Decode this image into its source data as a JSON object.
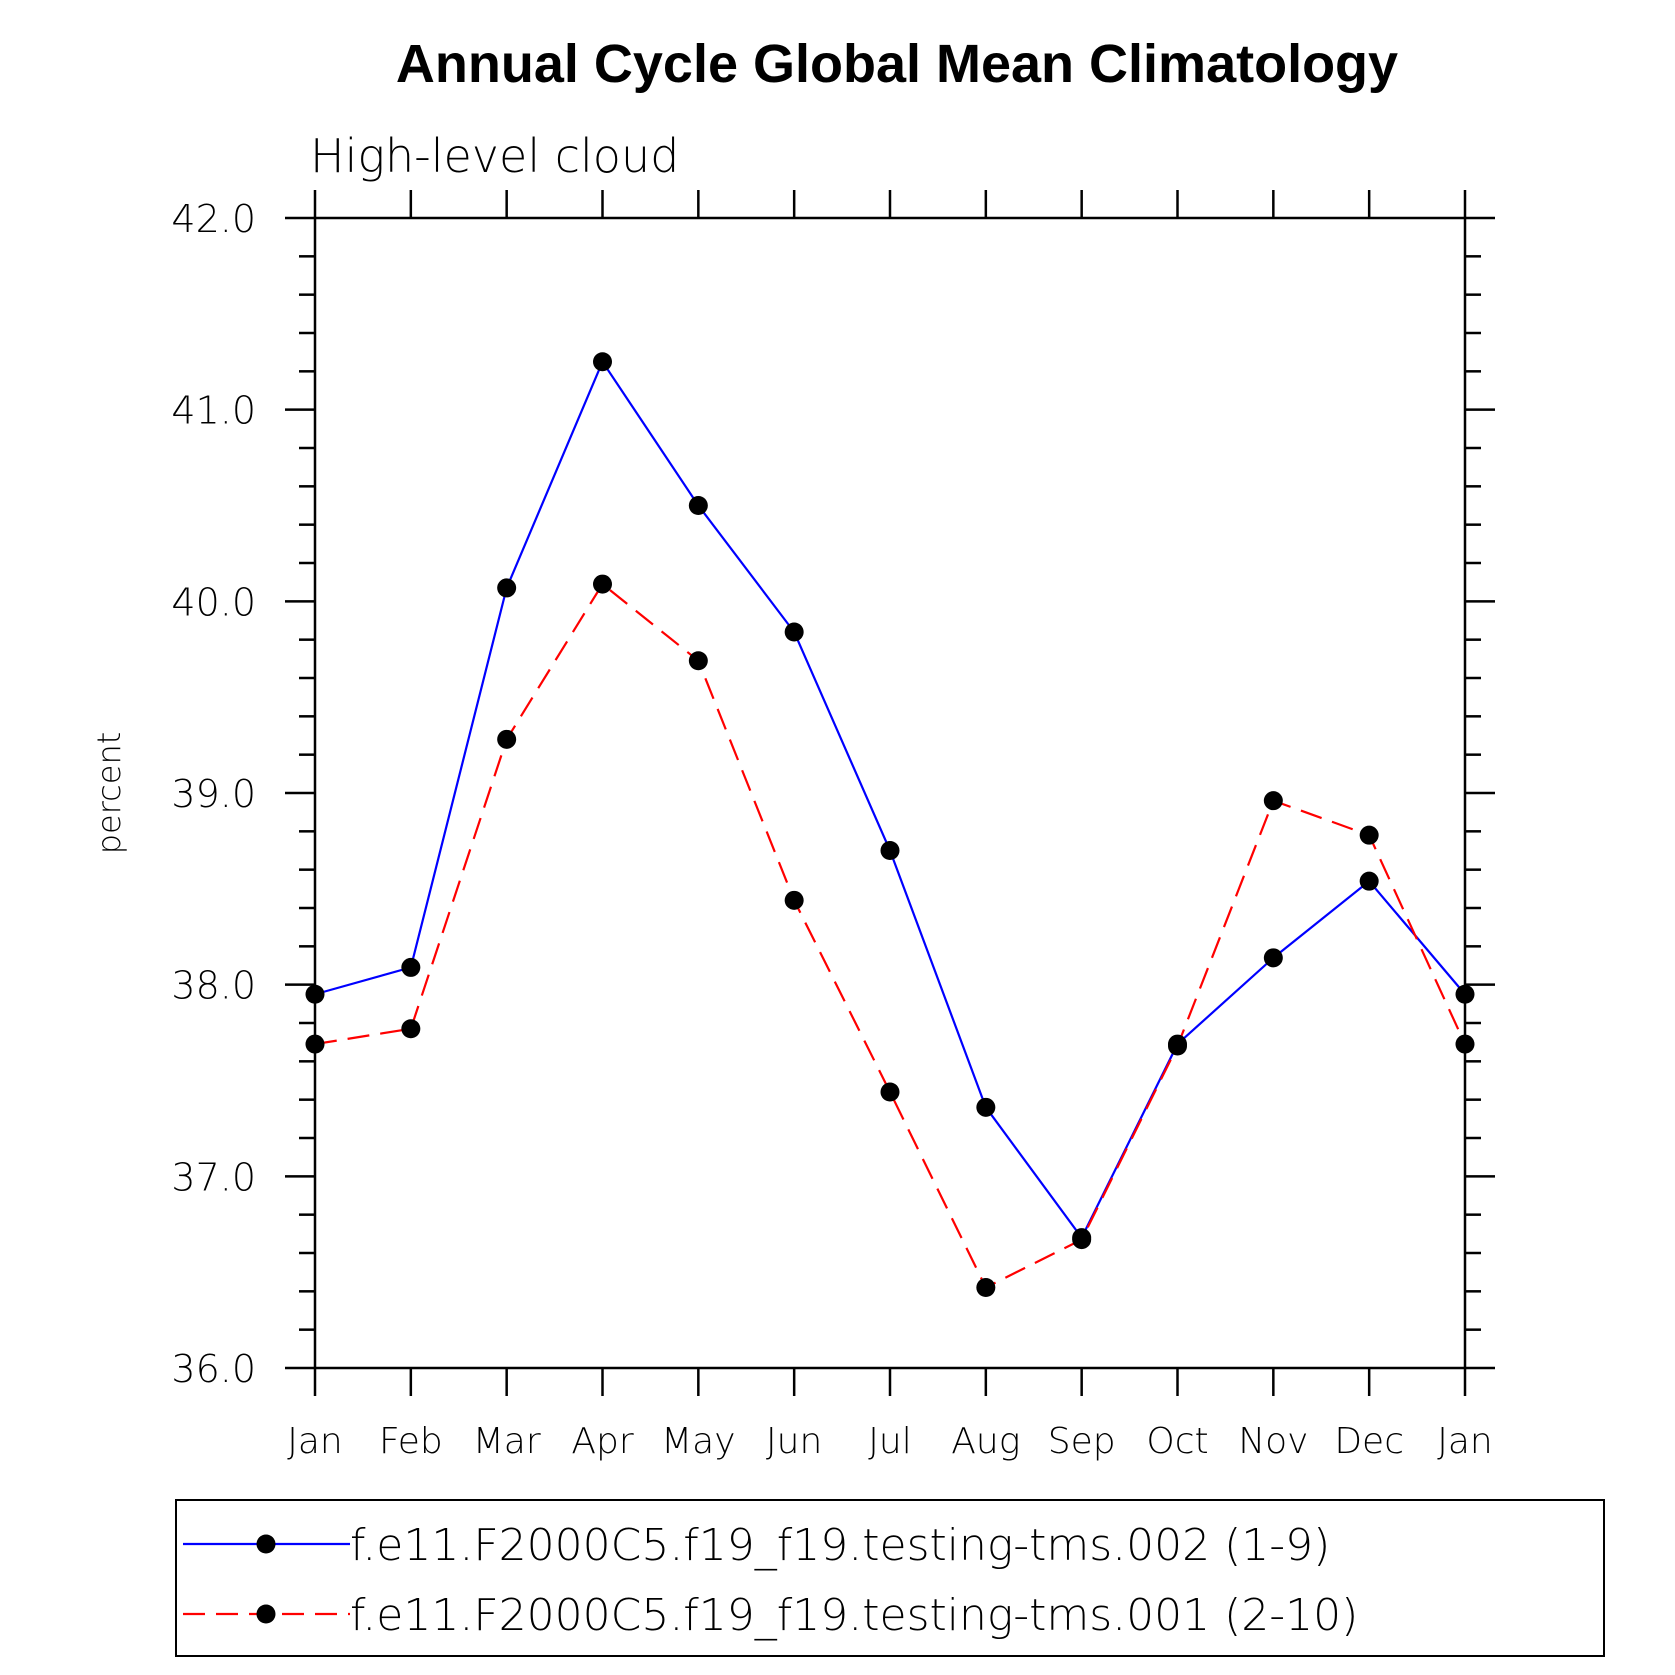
{
  "chart_data": {
    "type": "line",
    "title": "Annual Cycle Global Mean Climatology",
    "subtitle": "High-level cloud",
    "ylabel": "percent",
    "xlabel": "",
    "ylim": [
      36.0,
      42.0
    ],
    "yticks": [
      "36.0",
      "37.0",
      "38.0",
      "39.0",
      "40.0",
      "41.0",
      "42.0"
    ],
    "categories": [
      "Jan",
      "Feb",
      "Mar",
      "Apr",
      "May",
      "Jun",
      "Jul",
      "Aug",
      "Sep",
      "Oct",
      "Nov",
      "Dec",
      "Jan"
    ],
    "series": [
      {
        "name": "f.e11.F2000C5.f19_f19.testing-tms.002 (1-9)",
        "color": "#0000ff",
        "dash": "solid",
        "values": [
          37.95,
          38.09,
          40.07,
          41.25,
          40.5,
          39.84,
          38.7,
          37.36,
          36.68,
          37.69,
          38.14,
          38.54,
          37.95
        ]
      },
      {
        "name": "f.e11.F2000C5.f19_f19.testing-tms.001 (2-10)",
        "color": "#ff0000",
        "dash": "dashed",
        "values": [
          37.69,
          37.77,
          39.28,
          40.09,
          39.69,
          38.44,
          37.44,
          36.42,
          36.67,
          37.68,
          38.96,
          38.78,
          37.69
        ]
      }
    ],
    "legend_position": "bottom"
  }
}
